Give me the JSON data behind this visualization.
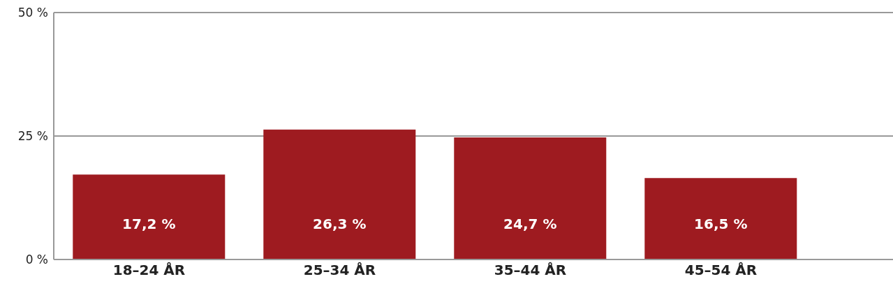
{
  "chart_data": {
    "type": "bar",
    "categories": [
      "18–24 ÅR",
      "25–34 ÅR",
      "35–44 ÅR",
      "45–54 ÅR"
    ],
    "values": [
      17.2,
      26.3,
      24.7,
      16.5
    ],
    "color": "#9e1b20",
    "value_labels": [
      "17,2 %",
      "26,3 %",
      "24,7 %",
      "16,5 %"
    ],
    "ylim": [
      0,
      50
    ],
    "yticks": [
      {
        "value": 0,
        "label": "0 %"
      },
      {
        "value": 25,
        "label": "25 %"
      },
      {
        "value": 50,
        "label": "50 %"
      }
    ],
    "grid": "y",
    "legend": false
  }
}
